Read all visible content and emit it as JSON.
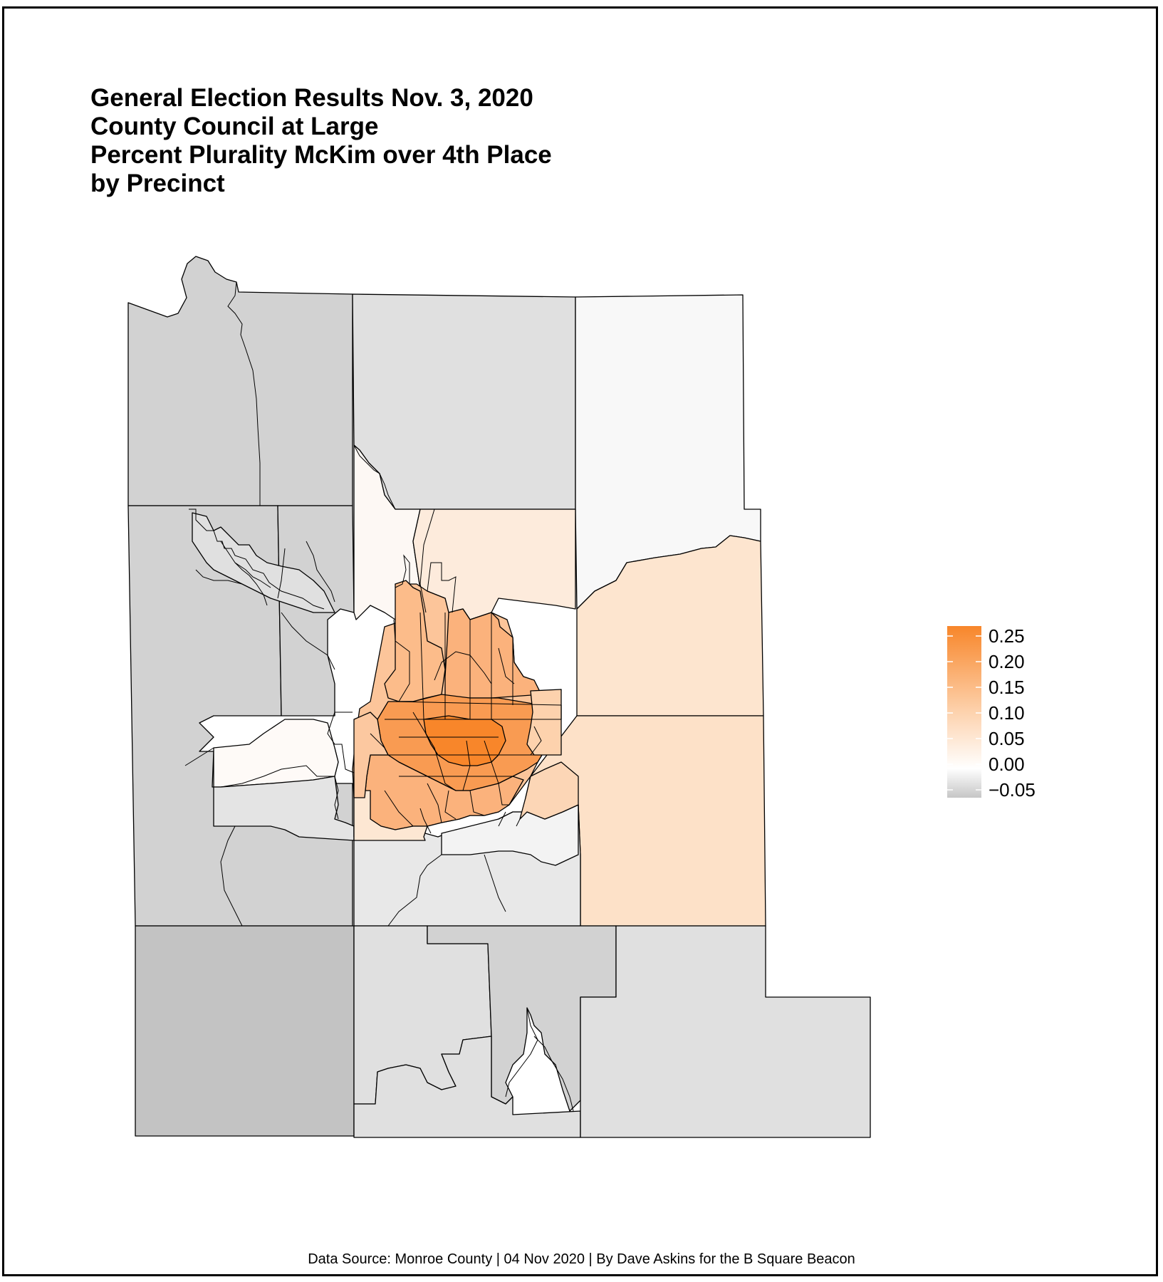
{
  "title": {
    "line1": "General Election Results Nov. 3, 2020",
    "line2": "County Council at Large",
    "line3": "Percent Plurality McKim over 4th Place",
    "line4": "by Precinct"
  },
  "legend": {
    "labels": [
      "0.25",
      "0.20",
      "0.15",
      "0.10",
      "0.05",
      "0.00",
      "−0.05"
    ],
    "range": [
      -0.05,
      0.25
    ],
    "low_color": "#c6c6c6",
    "mid_color": "#ffffff",
    "high_color": "#f88a2e"
  },
  "colors": {
    "dark_gray": "#c3c3c3",
    "gray": "#d2d2d2",
    "light_gray": "#e0e0e0",
    "pale_gray": "#ebebeb",
    "near_white": "#f8f8f8",
    "pale_orange": "#fde5cf",
    "light_orange": "#fdd2ad",
    "mid_orange": "#fcb07a",
    "strong_orange": "#fa9a50",
    "deep_orange": "#f8862a",
    "outline": "#000000"
  },
  "caption": "Data Source: Monroe County | 04 Nov 2020 | By Dave Askins for the B Square Beacon"
}
